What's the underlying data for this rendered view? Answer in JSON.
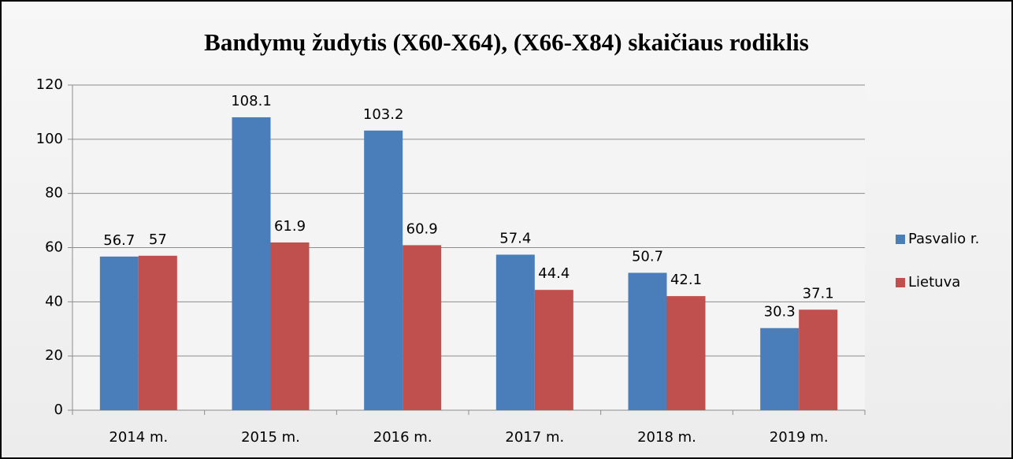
{
  "chart_data": {
    "type": "bar",
    "title": "Bandymų žudytis (X60-X64), (X66-X84) skaičiaus rodiklis",
    "categories": [
      "2014 m.",
      "2015 m.",
      "2016 m.",
      "2017 m.",
      "2018 m.",
      "2019 m."
    ],
    "series": [
      {
        "name": "Pasvalio r.",
        "color": "#4a7ebb",
        "values": [
          56.7,
          108.1,
          103.2,
          57.4,
          50.7,
          30.3
        ]
      },
      {
        "name": "Lietuva",
        "color": "#c0504d",
        "values": [
          57,
          61.9,
          60.9,
          44.4,
          42.1,
          37.1
        ]
      }
    ],
    "ylim": [
      0,
      120
    ],
    "yticks": [
      0,
      20,
      40,
      60,
      80,
      100,
      120
    ],
    "grid": true,
    "legend": "right"
  }
}
